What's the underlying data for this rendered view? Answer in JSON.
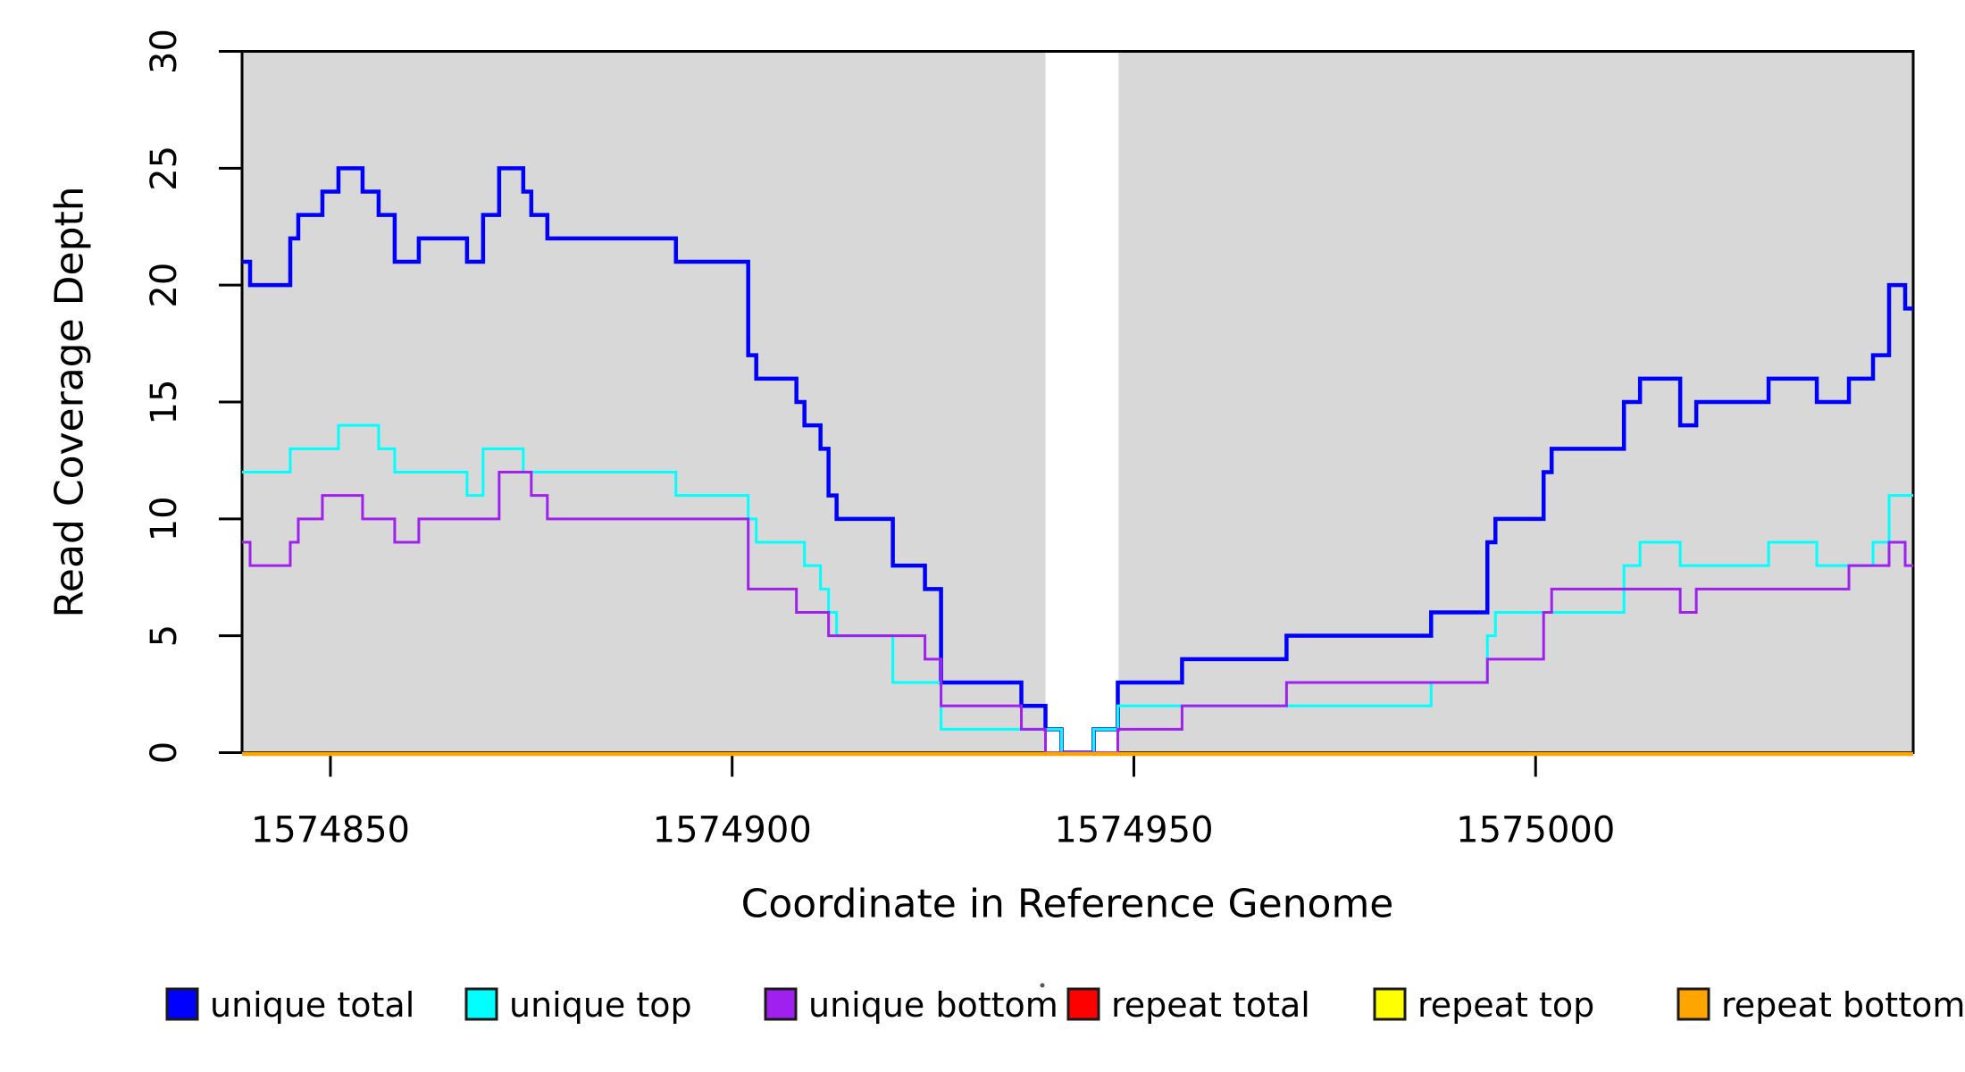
{
  "chart_data": {
    "type": "line",
    "subtype": "step",
    "title": "",
    "xlabel": "Coordinate in Reference Genome",
    "ylabel": "Read Coverage Depth",
    "xlim": [
      1574839,
      1575047
    ],
    "ylim": [
      0,
      30
    ],
    "x_ticks": [
      1574850,
      1574900,
      1574950,
      1575000
    ],
    "y_ticks": [
      0,
      5,
      10,
      15,
      20,
      25,
      30
    ],
    "grid": false,
    "background_color": "#D8D8D8",
    "shaded_regions": [
      [
        1574839.1,
        1574939.0
      ],
      [
        1574948.1,
        1575047.0
      ]
    ],
    "gap_region": [
      1574939.0,
      1574948.1
    ],
    "series": [
      {
        "name": "unique total",
        "color": "#0000FF",
        "width": 4.5,
        "points": [
          [
            1574839,
            21
          ],
          [
            1574840,
            20
          ],
          [
            1574845,
            22
          ],
          [
            1574846,
            23
          ],
          [
            1574849,
            24
          ],
          [
            1574851,
            25
          ],
          [
            1574854,
            24
          ],
          [
            1574856,
            23
          ],
          [
            1574858,
            21
          ],
          [
            1574861,
            22
          ],
          [
            1574867,
            21
          ],
          [
            1574869,
            23
          ],
          [
            1574871,
            25
          ],
          [
            1574874,
            24
          ],
          [
            1574875,
            23
          ],
          [
            1574877,
            22
          ],
          [
            1574893,
            21
          ],
          [
            1574902,
            17
          ],
          [
            1574903,
            16
          ],
          [
            1574908,
            15
          ],
          [
            1574909,
            14
          ],
          [
            1574911,
            13
          ],
          [
            1574912,
            11
          ],
          [
            1574913,
            10
          ],
          [
            1574920,
            8
          ],
          [
            1574924,
            7
          ],
          [
            1574926,
            3
          ],
          [
            1574936,
            2
          ],
          [
            1574939,
            1
          ],
          [
            1574941,
            0
          ],
          [
            1574945,
            1
          ],
          [
            1574948,
            3
          ],
          [
            1574956,
            4
          ],
          [
            1574969,
            5
          ],
          [
            1574987,
            6
          ],
          [
            1574994,
            9
          ],
          [
            1574995,
            10
          ],
          [
            1575001,
            12
          ],
          [
            1575002,
            13
          ],
          [
            1575011,
            15
          ],
          [
            1575013,
            16
          ],
          [
            1575018,
            14
          ],
          [
            1575020,
            15
          ],
          [
            1575029,
            16
          ],
          [
            1575035,
            15
          ],
          [
            1575039,
            16
          ],
          [
            1575042,
            17
          ],
          [
            1575044,
            20
          ],
          [
            1575046,
            19
          ]
        ]
      },
      {
        "name": "unique top",
        "color": "#00FFFF",
        "width": 3,
        "points": [
          [
            1574839,
            12
          ],
          [
            1574845,
            13
          ],
          [
            1574851,
            14
          ],
          [
            1574856,
            13
          ],
          [
            1574858,
            12
          ],
          [
            1574867,
            11
          ],
          [
            1574869,
            13
          ],
          [
            1574874,
            12
          ],
          [
            1574893,
            11
          ],
          [
            1574902,
            10
          ],
          [
            1574903,
            9
          ],
          [
            1574909,
            8
          ],
          [
            1574911,
            7
          ],
          [
            1574912,
            6
          ],
          [
            1574913,
            5
          ],
          [
            1574920,
            3
          ],
          [
            1574926,
            1
          ],
          [
            1574941,
            0
          ],
          [
            1574945,
            1
          ],
          [
            1574948,
            2
          ],
          [
            1574987,
            3
          ],
          [
            1574994,
            5
          ],
          [
            1574995,
            6
          ],
          [
            1575011,
            8
          ],
          [
            1575013,
            9
          ],
          [
            1575018,
            8
          ],
          [
            1575029,
            9
          ],
          [
            1575035,
            8
          ],
          [
            1575042,
            9
          ],
          [
            1575044,
            11
          ]
        ]
      },
      {
        "name": "unique bottom",
        "color": "#A020F0",
        "width": 3,
        "points": [
          [
            1574839,
            9
          ],
          [
            1574840,
            8
          ],
          [
            1574845,
            9
          ],
          [
            1574846,
            10
          ],
          [
            1574849,
            11
          ],
          [
            1574854,
            10
          ],
          [
            1574858,
            9
          ],
          [
            1574861,
            10
          ],
          [
            1574871,
            12
          ],
          [
            1574875,
            11
          ],
          [
            1574877,
            10
          ],
          [
            1574902,
            7
          ],
          [
            1574908,
            6
          ],
          [
            1574912,
            5
          ],
          [
            1574924,
            4
          ],
          [
            1574926,
            2
          ],
          [
            1574936,
            1
          ],
          [
            1574939,
            0
          ],
          [
            1574948,
            1
          ],
          [
            1574956,
            2
          ],
          [
            1574969,
            3
          ],
          [
            1574994,
            4
          ],
          [
            1575001,
            6
          ],
          [
            1575002,
            7
          ],
          [
            1575018,
            6
          ],
          [
            1575020,
            7
          ],
          [
            1575039,
            8
          ],
          [
            1575044,
            9
          ],
          [
            1575046,
            8
          ]
        ]
      },
      {
        "name": "repeat total",
        "color": "#FF0000",
        "width": 3,
        "points": [
          [
            1574839,
            0
          ]
        ]
      },
      {
        "name": "repeat top",
        "color": "#FFFF00",
        "width": 3,
        "points": [
          [
            1574839,
            0
          ]
        ]
      },
      {
        "name": "repeat bottom",
        "color": "#FFA500",
        "width": 4.5,
        "points": [
          [
            1574839,
            0
          ]
        ]
      }
    ],
    "legend": {
      "position": "bottom",
      "entries": [
        {
          "label": "unique total",
          "color": "#0000FF"
        },
        {
          "label": "unique top",
          "color": "#00FFFF"
        },
        {
          "label": "unique bottom",
          "color": "#A020F0"
        },
        {
          "label": "repeat total",
          "color": "#FF0000"
        },
        {
          "label": "repeat top",
          "color": "#FFFF00"
        },
        {
          "label": "repeat bottom",
          "color": "#FFA500"
        }
      ]
    }
  }
}
